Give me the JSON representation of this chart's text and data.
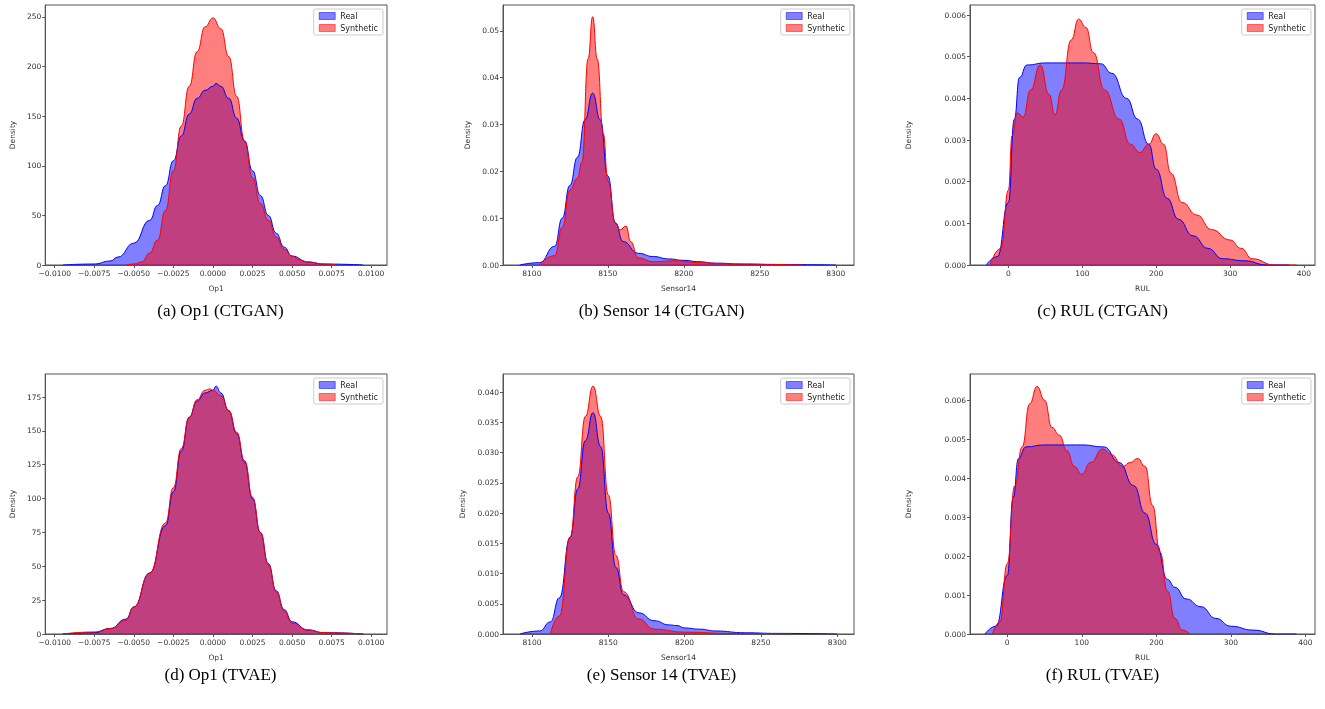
{
  "chart_data": [
    {
      "type": "area",
      "title": "(a) Op1 (CTGAN)",
      "xlabel": "Op1",
      "ylabel": "Density",
      "legend": "top right",
      "xlim": [
        -0.0106,
        0.011
      ],
      "xticks": [
        {
          "value": -0.01,
          "label": "−0.0100"
        },
        {
          "value": -0.0075,
          "label": "−0.0075"
        },
        {
          "value": -0.005,
          "label": "−0.0050"
        },
        {
          "value": -0.0025,
          "label": "−0.0025"
        },
        {
          "value": 0,
          "label": "0.0000"
        },
        {
          "value": 0.0025,
          "label": "0.0025"
        },
        {
          "value": 0.005,
          "label": "0.0050"
        },
        {
          "value": 0.0075,
          "label": "0.0075"
        },
        {
          "value": 0.01,
          "label": "0.0100"
        }
      ],
      "ylim": [
        0,
        262
      ],
      "yticks": [
        0,
        50,
        100,
        150,
        200,
        250
      ],
      "series": [
        {
          "name": "Real",
          "color": "#0000ff",
          "x": [
            -0.0095,
            -0.0075,
            -0.0065,
            -0.006,
            -0.005,
            -0.004,
            -0.0035,
            -0.003,
            -0.0025,
            -0.002,
            -0.0015,
            -0.001,
            -0.0005,
            0,
            0.0002,
            0.0005,
            0.001,
            0.0015,
            0.002,
            0.0025,
            0.003,
            0.0035,
            0.004,
            0.0045,
            0.005,
            0.006,
            0.007,
            0.0095
          ],
          "values": [
            0,
            1,
            4,
            8,
            22,
            45,
            60,
            80,
            105,
            130,
            152,
            168,
            176,
            180,
            183,
            180,
            168,
            148,
            125,
            95,
            70,
            50,
            32,
            18,
            9,
            3,
            1,
            0
          ]
        },
        {
          "name": "Synthetic",
          "color": "#ff0000",
          "x": [
            -0.0055,
            -0.005,
            -0.0045,
            -0.004,
            -0.0035,
            -0.003,
            -0.0025,
            -0.002,
            -0.0015,
            -0.001,
            -0.0005,
            0,
            0.0005,
            0.001,
            0.0015,
            0.002,
            0.0025,
            0.003,
            0.0035,
            0.004,
            0.0045,
            0.005,
            0.0055,
            0.006,
            0.007,
            0.0078
          ],
          "values": [
            0,
            1,
            3,
            12,
            25,
            55,
            95,
            140,
            180,
            215,
            240,
            249,
            238,
            210,
            170,
            125,
            88,
            62,
            45,
            28,
            16,
            9,
            5,
            3,
            1,
            0
          ]
        }
      ]
    },
    {
      "type": "area",
      "title": "(b) Sensor 14 (CTGAN)",
      "xlabel": "Sensor14",
      "ylabel": "Density",
      "legend": "top right",
      "xlim": [
        8081,
        8312
      ],
      "xticks": [
        8100,
        8150,
        8200,
        8250,
        8300
      ],
      "ylim": [
        0,
        0.0555
      ],
      "yticks": [
        {
          "value": 0,
          "label": "0.00"
        },
        0.01,
        0.02,
        0.03,
        0.04,
        0.05
      ],
      "series": [
        {
          "name": "Real",
          "color": "#0000ff",
          "x": [
            8092,
            8105,
            8115,
            8120,
            8125,
            8130,
            8135,
            8140,
            8145,
            8150,
            8155,
            8160,
            8170,
            8180,
            8190,
            8200,
            8210,
            8220,
            8240,
            8260,
            8300
          ],
          "values": [
            0,
            0.0005,
            0.004,
            0.01,
            0.017,
            0.023,
            0.031,
            0.0367,
            0.031,
            0.019,
            0.009,
            0.005,
            0.0025,
            0.0018,
            0.0013,
            0.001,
            0.0007,
            0.0004,
            0.0002,
            0.0001,
            0
          ]
        },
        {
          "name": "Synthetic",
          "color": "#ff0000",
          "x": [
            8105,
            8115,
            8120,
            8125,
            8130,
            8133,
            8137,
            8140,
            8143,
            8147,
            8150,
            8155,
            8158,
            8162,
            8165,
            8170,
            8180,
            8195,
            8210,
            8230,
            8278
          ],
          "values": [
            0,
            0.002,
            0.008,
            0.016,
            0.0185,
            0.022,
            0.044,
            0.053,
            0.044,
            0.028,
            0.018,
            0.009,
            0.0075,
            0.0083,
            0.005,
            0.0015,
            0.0007,
            0.0009,
            0.0005,
            0.0002,
            0
          ]
        }
      ]
    },
    {
      "type": "area",
      "title": "(c) RUL (CTGAN)",
      "xlabel": "RUL",
      "ylabel": "Density",
      "legend": "top right",
      "xlim": [
        -52,
        415
      ],
      "xticks": [
        0,
        100,
        200,
        300,
        400
      ],
      "ylim": [
        0,
        0.00624
      ],
      "yticks": [
        {
          "value": 0,
          "label": "0.000"
        },
        0.001,
        0.002,
        0.003,
        0.004,
        0.005,
        0.006
      ],
      "series": [
        {
          "name": "Real",
          "color": "#0000ff",
          "x": [
            -30,
            -15,
            0,
            8,
            15,
            25,
            50,
            100,
            125,
            140,
            160,
            175,
            190,
            200,
            215,
            230,
            250,
            270,
            290,
            320,
            350,
            380
          ],
          "values": [
            0,
            0.0002,
            0.0015,
            0.0035,
            0.0045,
            0.0048,
            0.00485,
            0.00485,
            0.00483,
            0.0046,
            0.004,
            0.0035,
            0.0029,
            0.0023,
            0.0016,
            0.0011,
            0.0007,
            0.0004,
            0.00015,
            0.0001,
            0,
            0
          ]
        },
        {
          "name": "Synthetic",
          "color": "#ff0000",
          "x": [
            -25,
            -10,
            0,
            5,
            12,
            20,
            30,
            43,
            55,
            63,
            72,
            85,
            95,
            105,
            115,
            130,
            150,
            165,
            178,
            190,
            200,
            210,
            220,
            235,
            255,
            275,
            300,
            315,
            330,
            360,
            390
          ],
          "values": [
            0,
            0.0004,
            0.0018,
            0.0031,
            0.00365,
            0.00355,
            0.0042,
            0.0048,
            0.0041,
            0.0036,
            0.0042,
            0.0054,
            0.0059,
            0.0057,
            0.0051,
            0.0042,
            0.0035,
            0.0029,
            0.0027,
            0.0029,
            0.00315,
            0.0029,
            0.0022,
            0.0015,
            0.0012,
            0.00085,
            0.0006,
            0.0004,
            0.00015,
            0,
            0
          ]
        }
      ]
    },
    {
      "type": "area",
      "title": "(d) Op1 (TVAE)",
      "xlabel": "Op1",
      "ylabel": "Density",
      "legend": "top right",
      "xlim": [
        -0.0106,
        0.011
      ],
      "xticks": [
        {
          "value": -0.01,
          "label": "−0.0100"
        },
        {
          "value": -0.0075,
          "label": "−0.0075"
        },
        {
          "value": -0.005,
          "label": "−0.0050"
        },
        {
          "value": -0.0025,
          "label": "−0.0025"
        },
        {
          "value": 0,
          "label": "0.0000"
        },
        {
          "value": 0.0025,
          "label": "0.0025"
        },
        {
          "value": 0.005,
          "label": "0.0050"
        },
        {
          "value": 0.0075,
          "label": "0.0075"
        },
        {
          "value": 0.01,
          "label": "0.0100"
        }
      ],
      "ylim": [
        0,
        192
      ],
      "yticks": [
        0,
        25,
        50,
        75,
        100,
        125,
        150,
        175
      ],
      "series": [
        {
          "name": "Real",
          "color": "#0000ff",
          "x": [
            -0.0095,
            -0.0075,
            -0.0065,
            -0.0055,
            -0.005,
            -0.004,
            -0.003,
            -0.0025,
            -0.002,
            -0.0015,
            -0.001,
            -0.0005,
            0,
            0.0002,
            0.0005,
            0.001,
            0.0015,
            0.002,
            0.0025,
            0.003,
            0.0035,
            0.004,
            0.0045,
            0.005,
            0.006,
            0.007,
            0.0095
          ],
          "values": [
            0,
            1,
            4,
            11,
            20,
            45,
            80,
            105,
            135,
            160,
            172,
            178,
            180,
            183,
            178,
            165,
            148,
            127,
            100,
            75,
            52,
            32,
            18,
            9,
            3,
            1,
            0
          ]
        },
        {
          "name": "Synthetic",
          "color": "#ff0000",
          "x": [
            -0.0095,
            -0.0075,
            -0.0065,
            -0.0055,
            -0.005,
            -0.004,
            -0.003,
            -0.0025,
            -0.002,
            -0.0015,
            -0.001,
            -0.0005,
            -0.0002,
            0,
            0.0005,
            0.001,
            0.0015,
            0.002,
            0.0025,
            0.003,
            0.0035,
            0.004,
            0.0045,
            0.005,
            0.006,
            0.007,
            0.0095
          ],
          "values": [
            0,
            1.5,
            4,
            10,
            20,
            45,
            82,
            108,
            137,
            160,
            173,
            180,
            181,
            180,
            176,
            165,
            149,
            128,
            101,
            75,
            51,
            31,
            17,
            8,
            3,
            1,
            0
          ]
        }
      ]
    },
    {
      "type": "area",
      "title": "(e) Sensor 14 (TVAE)",
      "xlabel": "Sensor14",
      "ylabel": "Density",
      "legend": "top right",
      "xlim": [
        8081,
        8311
      ],
      "xticks": [
        8100,
        8150,
        8200,
        8250,
        8300
      ],
      "ylim": [
        0,
        0.043
      ],
      "yticks": [
        {
          "value": 0,
          "label": "0.000"
        },
        0.005,
        {
          "value": 0.01,
          "label": "0.010"
        },
        0.015,
        {
          "value": 0.02,
          "label": "0.020"
        },
        0.025,
        {
          "value": 0.03,
          "label": "0.030"
        },
        0.035,
        {
          "value": 0.04,
          "label": "0.040"
        }
      ],
      "series": [
        {
          "name": "Real",
          "color": "#0000ff",
          "x": [
            8092,
            8105,
            8112,
            8118,
            8125,
            8130,
            8135,
            8140,
            8145,
            8150,
            8155,
            8160,
            8170,
            8180,
            8190,
            8195,
            8200,
            8210,
            8220,
            8240,
            8260,
            8300
          ],
          "values": [
            0,
            0.0005,
            0.002,
            0.006,
            0.016,
            0.024,
            0.032,
            0.0366,
            0.031,
            0.02,
            0.011,
            0.0065,
            0.0035,
            0.0022,
            0.0015,
            0.0014,
            0.001,
            0.0008,
            0.0005,
            0.0002,
            0.0001,
            0
          ]
        },
        {
          "name": "Synthetic",
          "color": "#ff0000",
          "x": [
            8112,
            8118,
            8125,
            8130,
            8135,
            8140,
            8145,
            8150,
            8155,
            8160,
            8170,
            8180,
            8200,
            8230,
            8270
          ],
          "values": [
            0,
            0.003,
            0.016,
            0.026,
            0.036,
            0.041,
            0.036,
            0.023,
            0.013,
            0.007,
            0.0025,
            0.0008,
            0.0003,
            0.0001,
            0
          ]
        }
      ]
    },
    {
      "type": "area",
      "title": "(f) RUL (TVAE)",
      "xlabel": "RUL",
      "ylabel": "Density",
      "legend": "top right",
      "xlim": [
        -50,
        413
      ],
      "xticks": [
        0,
        100,
        200,
        300,
        400
      ],
      "ylim": [
        0,
        0.00667
      ],
      "yticks": [
        {
          "value": 0,
          "label": "0.000"
        },
        0.001,
        0.002,
        0.003,
        0.004,
        0.005,
        0.006
      ],
      "series": [
        {
          "name": "Real",
          "color": "#0000ff",
          "x": [
            -30,
            -15,
            0,
            8,
            15,
            25,
            50,
            100,
            130,
            150,
            170,
            185,
            200,
            215,
            225,
            240,
            260,
            280,
            300,
            330,
            360,
            388
          ],
          "values": [
            0,
            0.0002,
            0.0015,
            0.0035,
            0.0045,
            0.0048,
            0.00485,
            0.00485,
            0.0048,
            0.0044,
            0.0038,
            0.0031,
            0.0023,
            0.0014,
            0.0012,
            0.0009,
            0.0007,
            0.0004,
            0.0002,
            0.0001,
            0,
            0
          ]
        },
        {
          "name": "Synthetic",
          "color": "#ff0000",
          "x": [
            -20,
            -10,
            0,
            10,
            20,
            30,
            40,
            50,
            60,
            70,
            80,
            90,
            100,
            112,
            128,
            140,
            155,
            165,
            175,
            185,
            195,
            205,
            215,
            225,
            235,
            245
          ],
          "values": [
            0,
            0.0003,
            0.0018,
            0.0038,
            0.0048,
            0.0059,
            0.00635,
            0.006,
            0.0053,
            0.0051,
            0.0047,
            0.0043,
            0.0041,
            0.0044,
            0.00475,
            0.0046,
            0.0043,
            0.0044,
            0.0045,
            0.0043,
            0.0033,
            0.0021,
            0.0011,
            0.0004,
            0.0001,
            0
          ]
        }
      ]
    }
  ]
}
